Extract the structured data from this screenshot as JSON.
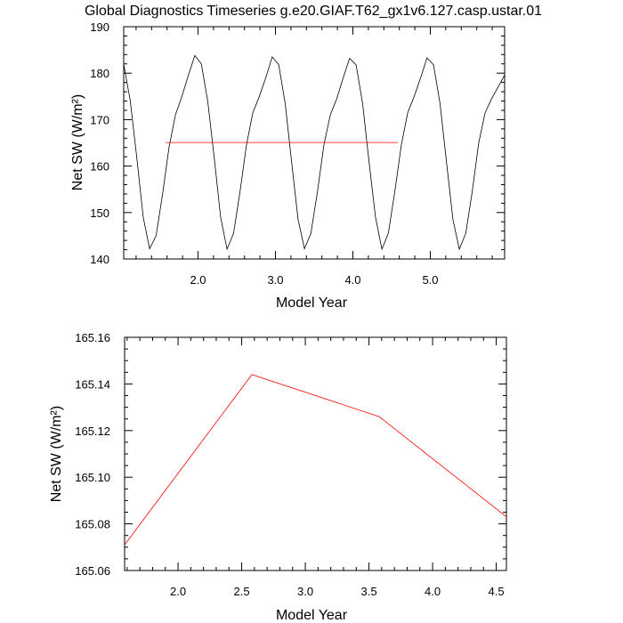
{
  "title": "Global Diagnostics Timeseries g.e20.GIAF.T62_gx1v6.127.casp.ustar.01",
  "chart_data": [
    {
      "type": "line",
      "xlabel": "Model Year",
      "ylabel": "Net SW (W/m²)",
      "xlim": [
        1.04,
        5.96
      ],
      "ylim": [
        140,
        190
      ],
      "xticks": [
        "2.0",
        "3.0",
        "4.0",
        "5.0"
      ],
      "yticks": [
        "140",
        "150",
        "160",
        "170",
        "180",
        "190"
      ],
      "series": [
        {
          "color": "#000000",
          "x": [
            1.04,
            1.125,
            1.208,
            1.292,
            1.375,
            1.458,
            1.542,
            1.625,
            1.708,
            1.792,
            1.875,
            1.958,
            2.042,
            2.125,
            2.208,
            2.292,
            2.375,
            2.458,
            2.542,
            2.625,
            2.708,
            2.792,
            2.875,
            2.958,
            3.042,
            3.125,
            3.208,
            3.292,
            3.375,
            3.458,
            3.542,
            3.625,
            3.708,
            3.792,
            3.875,
            3.958,
            4.042,
            4.125,
            4.208,
            4.292,
            4.375,
            4.458,
            4.542,
            4.625,
            4.708,
            4.792,
            4.875,
            4.958,
            5.042,
            5.125,
            5.208,
            5.292,
            5.375,
            5.458,
            5.542,
            5.625,
            5.708,
            5.792,
            5.875,
            5.958
          ],
          "y": [
            182,
            174,
            162,
            149,
            142.2,
            145,
            154,
            164,
            171,
            175,
            179.5,
            183.8,
            182,
            174,
            162,
            149,
            142.1,
            145.5,
            154.5,
            164.5,
            171.5,
            175,
            179,
            183.5,
            181.8,
            173.5,
            161,
            148.5,
            142.2,
            145.5,
            154.5,
            164.5,
            171,
            174.5,
            179,
            183.2,
            181.8,
            173.5,
            161,
            149,
            142.1,
            145.5,
            154.5,
            164.5,
            171.5,
            175,
            179,
            183.3,
            181.8,
            173.5,
            161,
            148.5,
            142.1,
            145.5,
            154.5,
            165,
            171.5,
            174.5,
            177,
            179.5
          ]
        },
        {
          "color": "#ff0000",
          "x": [
            1.58,
            4.58
          ],
          "y": [
            165.07,
            165.08
          ]
        }
      ]
    },
    {
      "type": "line",
      "xlabel": "Model Year",
      "ylabel": "Net SW (W/m²)",
      "xlim": [
        1.58,
        4.58
      ],
      "ylim": [
        165.06,
        165.16
      ],
      "xticks": [
        "2.0",
        "2.5",
        "3.0",
        "3.5",
        "4.0",
        "4.5"
      ],
      "yticks": [
        "165.06",
        "165.08",
        "165.10",
        "165.12",
        "165.14",
        "165.16"
      ],
      "series": [
        {
          "color": "#ff0000",
          "x": [
            1.58,
            2.58,
            3.58,
            4.58
          ],
          "y": [
            165.071,
            165.144,
            165.126,
            165.083
          ]
        }
      ]
    }
  ]
}
